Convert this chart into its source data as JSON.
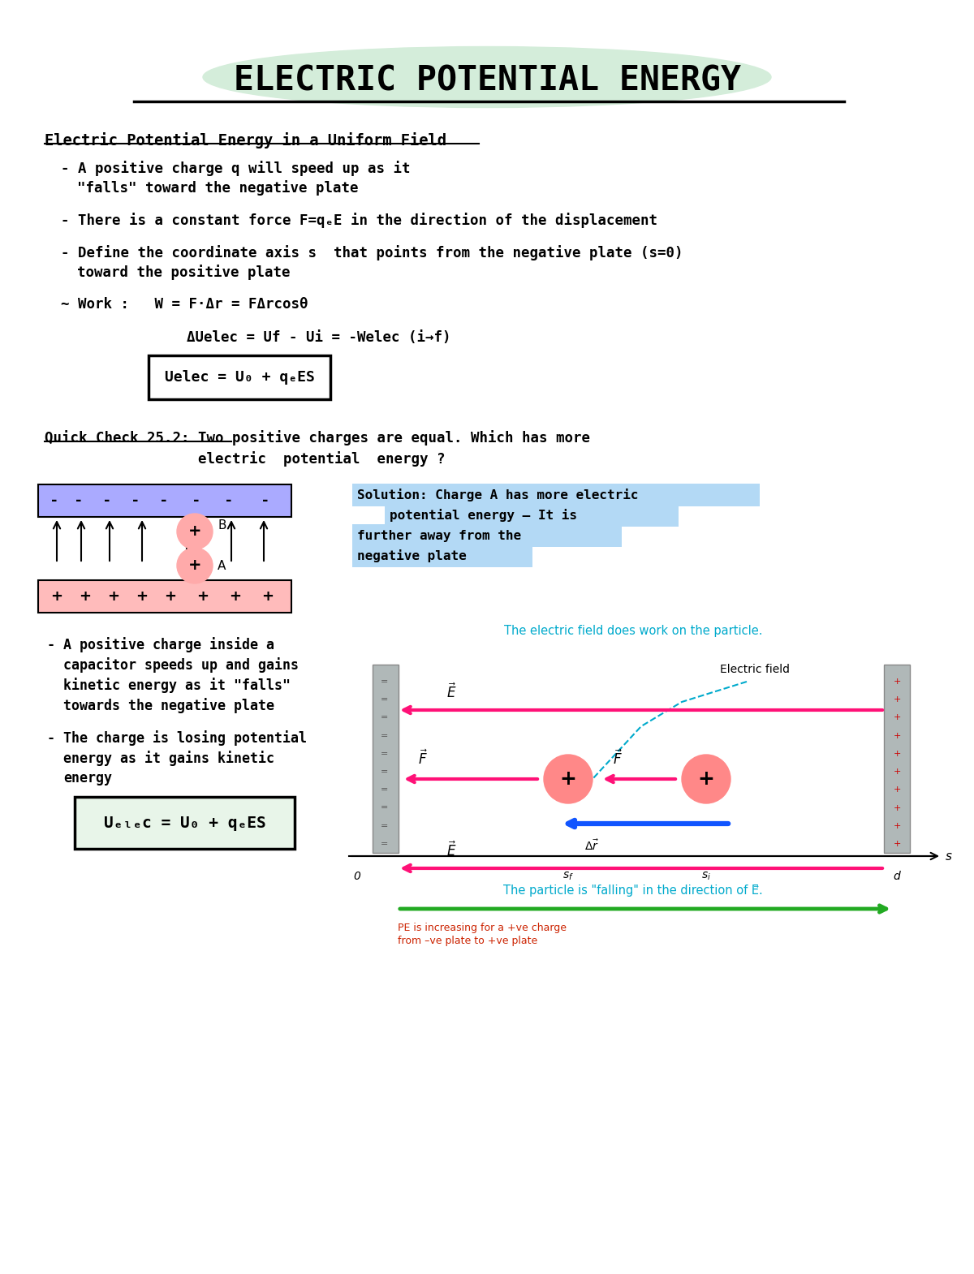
{
  "bg_color": "#ffffff",
  "title": "ELECTRIC POTENTIAL ENERGY",
  "title_highlight": "#d4edda",
  "section1_heading": "Electric Potential Energy in a Uniform Field",
  "lines": [
    "  - A positive charge q will speed up as it",
    "    \"falls\" toward the negative plate",
    "",
    "  - There is a constant force F=qₑE in the direction of the displacement",
    "",
    "  - Define the coordinate axis s  that points from the negative plate (s=0)",
    "    toward the positive plate",
    "",
    "  ~ Work :    W = F·Δr = FΔrcosθ"
  ],
  "delta_u_line": "ΔUelec = Uf - Ui = -Welec (i→f)",
  "box1_formula": "Uelec = U₀ + qₑES",
  "qc_line1": "Quick Check 25.2: Two positive charges are equal. Which has more",
  "qc_line2": "                  electric  potential  energy ?",
  "solution_lines": [
    "Solution: Charge A has more electric",
    "    potential energy – It is",
    "further away from the",
    "negative plate"
  ],
  "lower_lines": [
    "  -A positive charge inside a",
    "   capacitor speeds up and gains",
    "   kinetic energy as it \"falls\"",
    "   towards the negative plate",
    "",
    "  - The charge is losing potential",
    "    energy as it gains kinetic",
    "    energy"
  ],
  "box2_formula": "Uₑₗₑc = U₀ + qₑES",
  "diagram_top_caption": "The electric field does work on the particle.",
  "diagram_elec_field_label": "Electric field",
  "diagram_bottom_caption": "The particle is \"falling\" in the direction of E⃗.",
  "diagram_note_line1": "PE is increasing for a +ve charge",
  "diagram_note_line2": "from –ve plate to +ve plate",
  "neg_plate_color": "#aaaaff",
  "pos_plate_color": "#ffbbbb",
  "gray_plate_color": "#b0b8b8",
  "pink_arrow_color": "#ff1177",
  "blue_arrow_color": "#1155ff",
  "green_arrow_color": "#22aa22",
  "cyan_color": "#00aacc",
  "red_text_color": "#cc2200",
  "solution_highlight": "#b3d9f5",
  "box1_bg": "#ffffff",
  "box2_bg": "#e8f5e9"
}
